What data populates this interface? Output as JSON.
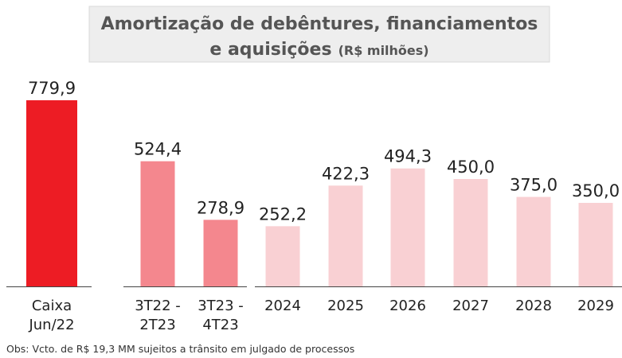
{
  "chart_data": {
    "type": "bar",
    "title": [
      "Amortização de debêntures, financiamentos",
      "e aquisições"
    ],
    "unit": "(R$ milhões)",
    "categories": [
      [
        "Caixa",
        "Jun/22"
      ],
      [
        "3T22 -",
        "2T23"
      ],
      [
        "3T23 -",
        "4T23"
      ],
      [
        "2024"
      ],
      [
        "2025"
      ],
      [
        "2026"
      ],
      [
        "2027"
      ],
      [
        "2028"
      ],
      [
        "2029"
      ]
    ],
    "values": [
      779.9,
      524.4,
      278.9,
      252.2,
      422.3,
      494.3,
      450.0,
      375.0,
      350.0
    ],
    "value_labels": [
      "779,9",
      "524,4",
      "278,9",
      "252,2",
      "422,3",
      "494,3",
      "450,0",
      "375,0",
      "350,0"
    ],
    "colors": [
      "#ed1c24",
      "#f4878e",
      "#f4878e",
      "#f9d0d3",
      "#f9d0d3",
      "#f9d0d3",
      "#f9d0d3",
      "#f9d0d3",
      "#f9d0d3"
    ],
    "ylim": [
      0,
      800
    ],
    "note": "Obs: Vcto. de R$ 19,3 MM sujeitos a trânsito em julgado de processos"
  }
}
